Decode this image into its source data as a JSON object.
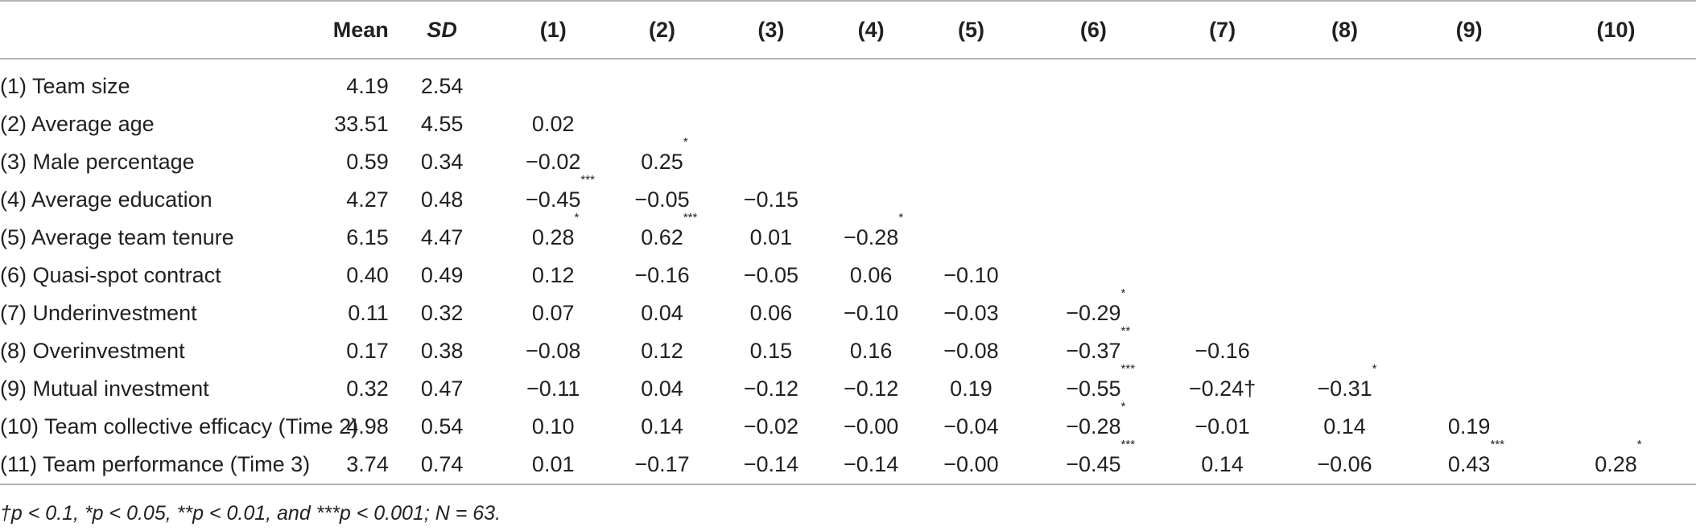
{
  "table": {
    "headers": [
      "",
      "Mean",
      "SD",
      "(1)",
      "(2)",
      "(3)",
      "(4)",
      "(5)",
      "(6)",
      "(7)",
      "(8)",
      "(9)",
      "(10)"
    ],
    "rows": [
      {
        "label": "(1) Team size",
        "mean": "4.19",
        "sd": "2.54",
        "cells": []
      },
      {
        "label": "(2) Average age",
        "mean": "33.51",
        "sd": "4.55",
        "cells": [
          {
            "v": "0.02",
            "s": ""
          }
        ]
      },
      {
        "label": "(3) Male percentage",
        "mean": "0.59",
        "sd": "0.34",
        "cells": [
          {
            "v": "−0.02",
            "s": ""
          },
          {
            "v": "0.25",
            "s": "*"
          }
        ]
      },
      {
        "label": "(4) Average education",
        "mean": "4.27",
        "sd": "0.48",
        "cells": [
          {
            "v": "−0.45",
            "s": "***"
          },
          {
            "v": "−0.05",
            "s": ""
          },
          {
            "v": "−0.15",
            "s": ""
          }
        ]
      },
      {
        "label": "(5) Average team tenure",
        "mean": "6.15",
        "sd": "4.47",
        "cells": [
          {
            "v": "0.28",
            "s": "*"
          },
          {
            "v": "0.62",
            "s": "***"
          },
          {
            "v": "0.01",
            "s": ""
          },
          {
            "v": "−0.28",
            "s": "*"
          }
        ]
      },
      {
        "label": "(6) Quasi-spot contract",
        "mean": "0.40",
        "sd": "0.49",
        "cells": [
          {
            "v": "0.12",
            "s": ""
          },
          {
            "v": "−0.16",
            "s": ""
          },
          {
            "v": "−0.05",
            "s": ""
          },
          {
            "v": "0.06",
            "s": ""
          },
          {
            "v": "−0.10",
            "s": ""
          }
        ]
      },
      {
        "label": "(7) Underinvestment",
        "mean": "0.11",
        "sd": "0.32",
        "cells": [
          {
            "v": "0.07",
            "s": ""
          },
          {
            "v": "0.04",
            "s": ""
          },
          {
            "v": "0.06",
            "s": ""
          },
          {
            "v": "−0.10",
            "s": ""
          },
          {
            "v": "−0.03",
            "s": ""
          },
          {
            "v": "−0.29",
            "s": "*"
          }
        ]
      },
      {
        "label": "(8) Overinvestment",
        "mean": "0.17",
        "sd": "0.38",
        "cells": [
          {
            "v": "−0.08",
            "s": ""
          },
          {
            "v": "0.12",
            "s": ""
          },
          {
            "v": "0.15",
            "s": ""
          },
          {
            "v": "0.16",
            "s": ""
          },
          {
            "v": "−0.08",
            "s": ""
          },
          {
            "v": "−0.37",
            "s": "**"
          },
          {
            "v": "−0.16",
            "s": ""
          }
        ]
      },
      {
        "label": "(9) Mutual investment",
        "mean": "0.32",
        "sd": "0.47",
        "cells": [
          {
            "v": "−0.11",
            "s": ""
          },
          {
            "v": "0.04",
            "s": ""
          },
          {
            "v": "−0.12",
            "s": ""
          },
          {
            "v": "−0.12",
            "s": ""
          },
          {
            "v": "0.19",
            "s": ""
          },
          {
            "v": "−0.55",
            "s": "***"
          },
          {
            "v": "−0.24†",
            "s": ""
          },
          {
            "v": "−0.31",
            "s": "*"
          }
        ]
      },
      {
        "label": "(10) Team collective efficacy (Time 2)",
        "mean": "4.98",
        "sd": "0.54",
        "cells": [
          {
            "v": "0.10",
            "s": ""
          },
          {
            "v": "0.14",
            "s": ""
          },
          {
            "v": "−0.02",
            "s": ""
          },
          {
            "v": "−0.00",
            "s": ""
          },
          {
            "v": "−0.04",
            "s": ""
          },
          {
            "v": "−0.28",
            "s": "*"
          },
          {
            "v": "−0.01",
            "s": ""
          },
          {
            "v": "0.14",
            "s": ""
          },
          {
            "v": "0.19",
            "s": ""
          }
        ]
      },
      {
        "label": "(11) Team performance (Time 3)",
        "mean": "3.74",
        "sd": "0.74",
        "cells": [
          {
            "v": "0.01",
            "s": ""
          },
          {
            "v": "−0.17",
            "s": ""
          },
          {
            "v": "−0.14",
            "s": ""
          },
          {
            "v": "−0.14",
            "s": ""
          },
          {
            "v": "−0.00",
            "s": ""
          },
          {
            "v": "−0.45",
            "s": "***"
          },
          {
            "v": "0.14",
            "s": ""
          },
          {
            "v": "−0.06",
            "s": ""
          },
          {
            "v": "0.43",
            "s": "***"
          },
          {
            "v": "0.28",
            "s": "*"
          }
        ]
      }
    ]
  },
  "note": "†p < 0.1, *p < 0.05, **p < 0.01, and ***p < 0.001; N = 63."
}
